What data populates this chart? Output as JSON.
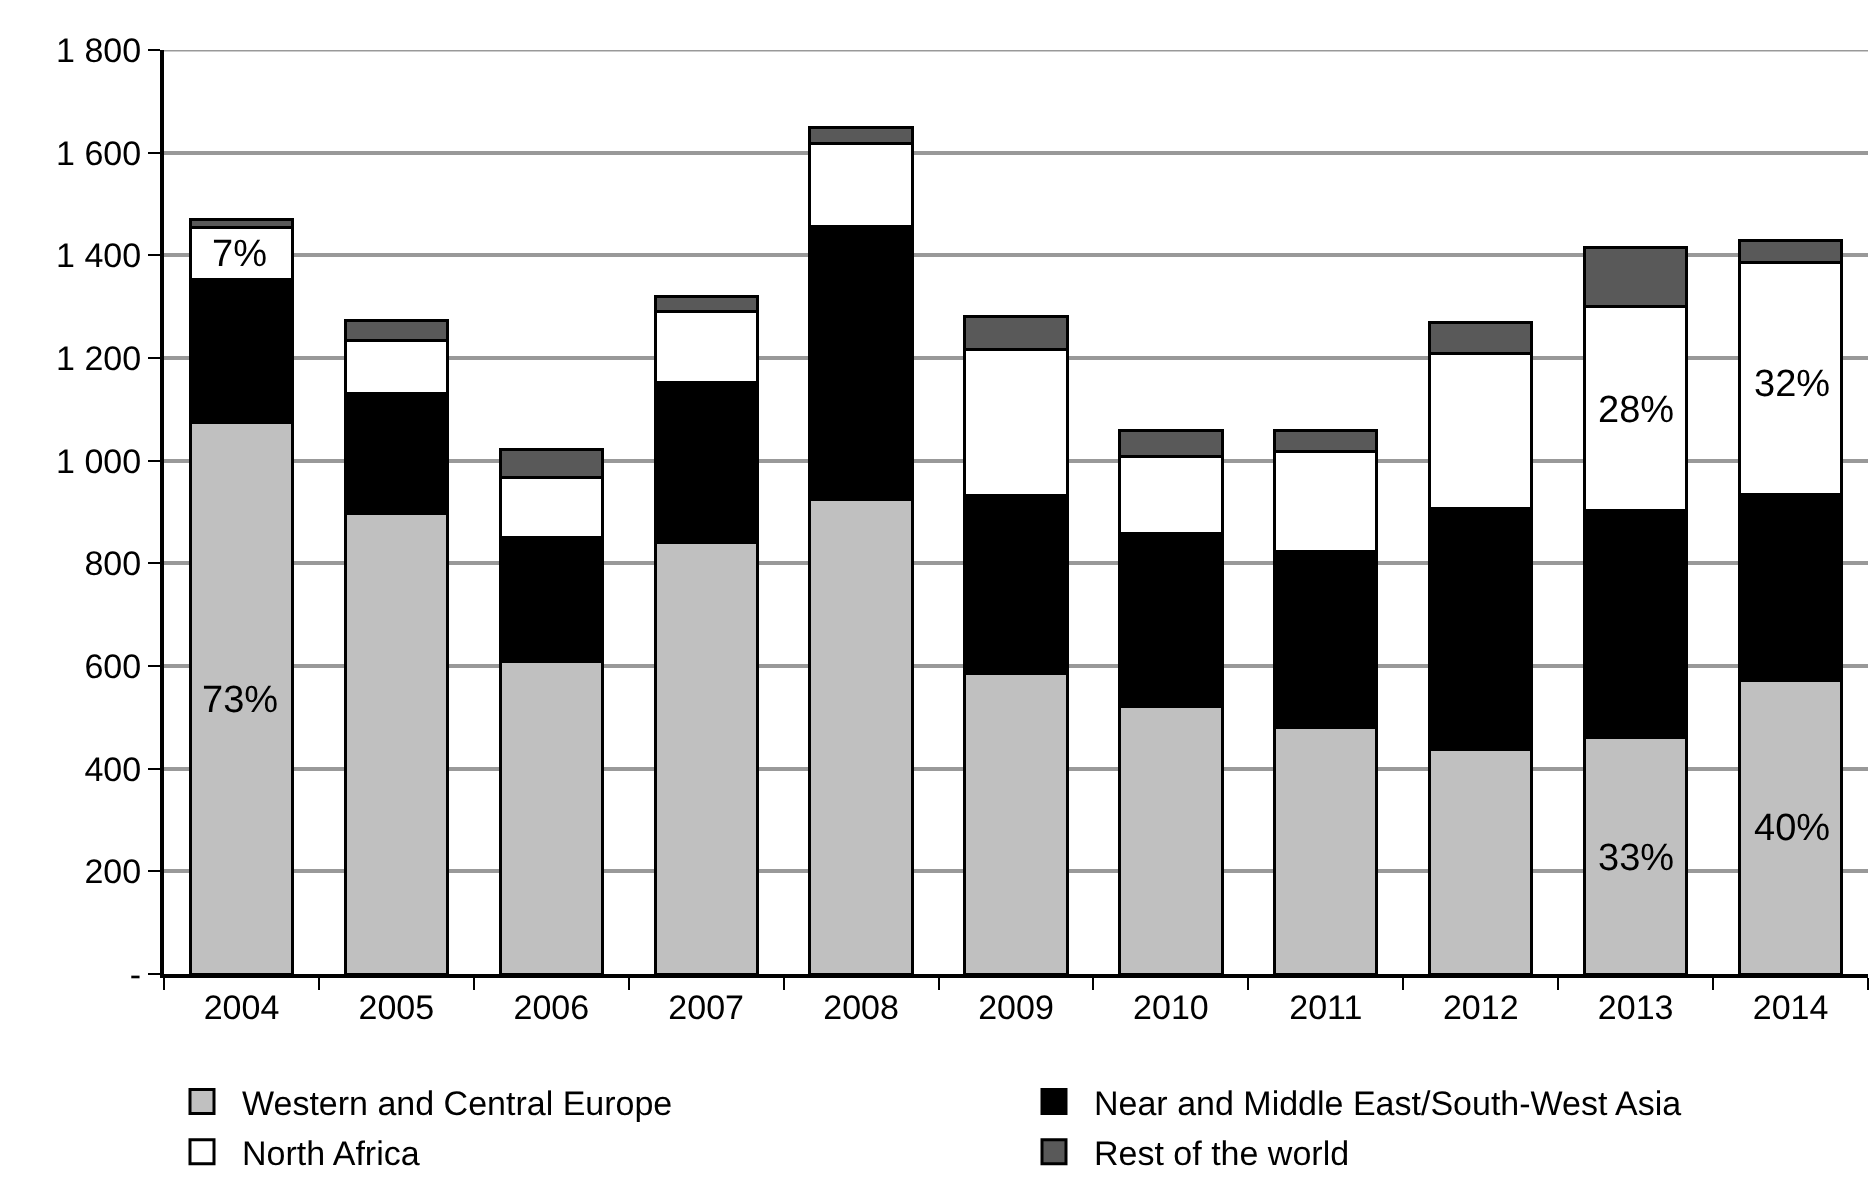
{
  "chart_data": {
    "type": "bar",
    "stacked": true,
    "categories": [
      "2004",
      "2005",
      "2006",
      "2007",
      "2008",
      "2009",
      "2010",
      "2011",
      "2012",
      "2013",
      "2014"
    ],
    "series": [
      {
        "name": "Western and Central Europe",
        "color": "#c0c0c0",
        "values": [
          1075,
          897,
          608,
          841,
          924,
          586,
          522,
          481,
          438,
          460,
          571
        ]
      },
      {
        "name": "Near and Middle East/South-West Asia",
        "color": "#000000",
        "values": [
          277,
          233,
          242,
          312,
          532,
          346,
          337,
          343,
          468,
          442,
          363
        ]
      },
      {
        "name": "North Africa",
        "color": "#ffffff",
        "values": [
          103,
          105,
          117,
          137,
          161,
          285,
          150,
          193,
          302,
          399,
          452
        ]
      },
      {
        "name": "Rest of the world",
        "color": "#595959",
        "values": [
          15,
          39,
          54,
          29,
          32,
          63,
          50,
          42,
          61,
          114,
          43
        ]
      }
    ],
    "ylim": [
      0,
      1800
    ],
    "yticks": [
      {
        "value": 0,
        "label": "-"
      },
      200,
      400,
      600,
      800,
      {
        "value": 1000,
        "label": "1 000"
      },
      {
        "value": 1200,
        "label": "1 200"
      },
      {
        "value": 1400,
        "label": "1 400"
      },
      {
        "value": 1600,
        "label": "1 600"
      },
      {
        "value": 1800,
        "label": "1 800"
      }
    ],
    "annotations": [
      "73%",
      "7%",
      "28%",
      "33%",
      "32%",
      "40%"
    ],
    "grid": "y",
    "legend": "bottom"
  }
}
